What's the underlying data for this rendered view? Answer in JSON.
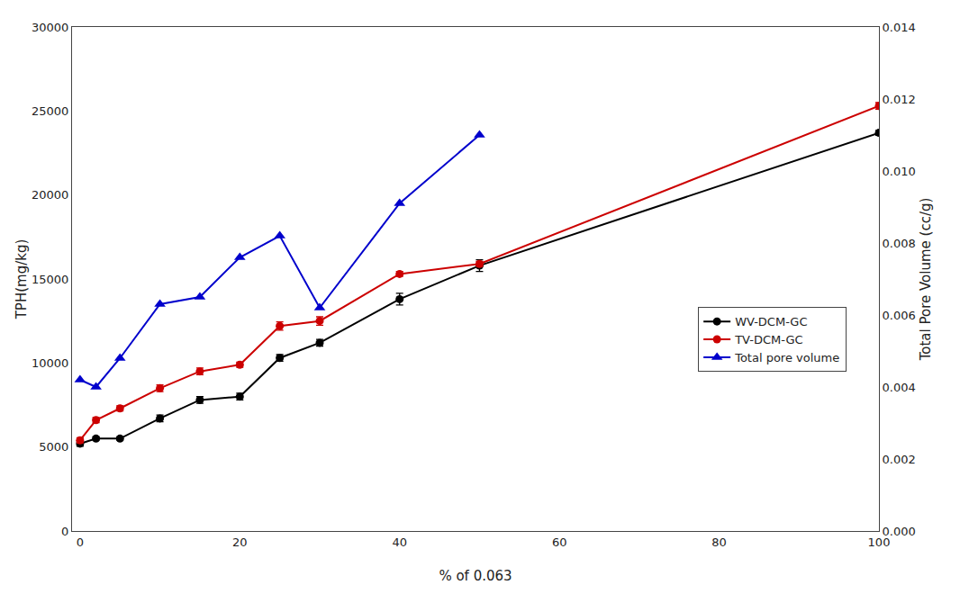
{
  "chart_data": {
    "type": "line",
    "xlabel": "% of 0.063",
    "ylabel": "TPH(mg/kg)",
    "y2label": "Total Pore Volume (cc/g)",
    "xlim": [
      -1,
      100
    ],
    "xticks": [
      0,
      20,
      40,
      60,
      80,
      100
    ],
    "ylim": [
      0,
      30000
    ],
    "yticks": [
      0,
      5000,
      10000,
      15000,
      20000,
      25000,
      30000
    ],
    "y2lim": [
      0.0,
      0.014
    ],
    "y2ticks": [
      {
        "value": 0,
        "label": "0.000"
      },
      0.002,
      0.004,
      0.006,
      0.008,
      {
        "value": 0.01,
        "label": "0.010"
      },
      0.012,
      0.014
    ],
    "grid": false,
    "legend": "right",
    "series": [
      {
        "name": "WV-DCM-GC",
        "color": "#000000",
        "marker": "circle",
        "x": [
          0,
          2,
          5,
          10,
          15,
          20,
          25,
          30,
          40,
          50,
          100
        ],
        "values": [
          5200,
          5500,
          5500,
          6700,
          7800,
          8000,
          10300,
          11200,
          13800,
          15800,
          23700
        ],
        "errors": [
          150,
          100,
          100,
          200,
          200,
          200,
          200,
          200,
          350,
          350,
          150
        ]
      },
      {
        "name": "TV-DCM-GC",
        "color": "#cc0000",
        "marker": "circle",
        "x": [
          0,
          2,
          5,
          10,
          15,
          20,
          25,
          30,
          40,
          50,
          100
        ],
        "values": [
          5400,
          6600,
          7300,
          8500,
          9500,
          9900,
          12200,
          12500,
          15300,
          15900,
          25300
        ],
        "errors": [
          150,
          150,
          150,
          200,
          200,
          150,
          250,
          250,
          150,
          150,
          200
        ]
      },
      {
        "name": "Total pore volume",
        "color": "#0000cc",
        "marker": "triangle-up",
        "axis": "y2",
        "x": [
          0,
          2,
          5,
          10,
          15,
          20,
          25,
          30,
          40,
          50
        ],
        "values": [
          0.0042,
          0.004,
          0.0048,
          0.0063,
          0.0065,
          0.0076,
          0.0082,
          0.0062,
          0.0091,
          0.011
        ]
      }
    ]
  }
}
